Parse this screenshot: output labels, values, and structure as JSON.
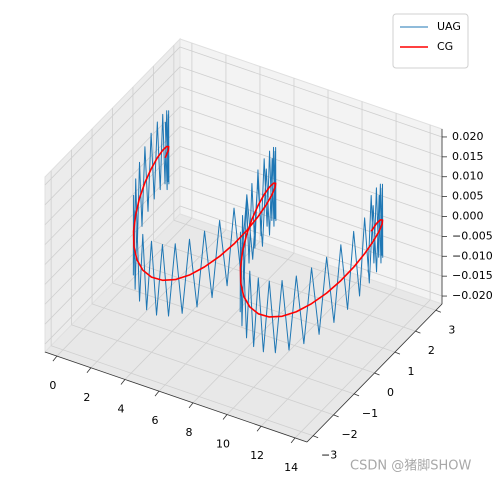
{
  "chart_data": {
    "type": "line3d",
    "xlim": [
      -0.7,
      14.7
    ],
    "ylim": [
      -3.3,
      3.3
    ],
    "zlim": [
      -0.022,
      0.022
    ],
    "xticks": [
      0,
      2,
      4,
      6,
      8,
      10,
      12,
      14
    ],
    "yticks": [
      {
        "value": -3,
        "label": "−3"
      },
      {
        "value": -2,
        "label": "−2"
      },
      {
        "value": -1,
        "label": "−1"
      },
      0,
      1,
      2,
      3
    ],
    "zticks": [
      {
        "value": -0.02,
        "label": "−0.020"
      },
      {
        "value": -0.015,
        "label": "−0.015"
      },
      {
        "value": -0.01,
        "label": "−0.010"
      },
      {
        "value": -0.005,
        "label": "−0.005"
      },
      {
        "value": 0,
        "label": "0.000"
      },
      {
        "value": 0.005,
        "label": "0.005"
      },
      {
        "value": 0.01,
        "label": "0.010"
      },
      {
        "value": 0.015,
        "label": "0.015"
      },
      {
        "value": 0.02,
        "label": "0.020"
      }
    ],
    "grid": true,
    "legend": "upper right",
    "series": [
      {
        "name": "UAG",
        "color": "#1f77b4",
        "x": [
          0,
          0.13,
          0.26,
          0.39,
          0.52,
          0.65,
          0.79,
          0.92,
          1.05,
          1.18,
          1.31,
          1.44,
          1.57,
          1.7,
          1.83,
          1.96,
          2.09,
          2.23,
          2.36,
          2.49,
          2.62,
          2.75,
          2.88,
          3.01,
          3.14,
          3.27,
          3.4,
          3.53,
          3.67,
          3.8,
          3.93,
          4.06,
          4.19,
          4.32,
          4.45,
          4.58,
          4.71,
          4.84,
          4.97,
          5.11,
          5.24,
          5.37,
          5.5,
          5.63,
          5.76,
          5.89,
          6.02,
          6.15,
          6.28,
          6.41,
          6.54,
          6.68,
          6.81,
          6.94,
          7.07,
          7.2,
          7.33,
          7.46,
          7.59,
          7.72,
          7.85,
          7.98,
          8.12,
          8.25,
          8.38,
          8.51,
          8.64,
          8.77,
          8.9,
          9.03,
          9.16,
          9.29,
          9.42,
          9.56,
          9.69,
          9.82,
          9.95,
          10.08,
          10.21,
          10.34,
          10.47,
          10.6,
          10.73,
          10.86,
          11,
          11.13,
          11.26,
          11.39,
          11.52,
          11.65,
          11.78,
          11.91,
          12.04,
          12.17,
          12.3,
          12.44,
          12.57,
          12.7,
          12.83,
          12.96,
          13.09,
          13.22,
          13.35,
          13.48,
          13.61,
          13.74,
          13.88,
          14.01
        ],
        "y": [
          2,
          1.98,
          1.93,
          1.85,
          1.73,
          1.59,
          1.41,
          1.22,
          1,
          0.77,
          0.52,
          0.26,
          0,
          -0.26,
          -0.52,
          -0.77,
          -1,
          -1.22,
          -1.41,
          -1.59,
          -1.73,
          -1.85,
          -1.93,
          -1.98,
          -2,
          -1.98,
          -1.93,
          -1.85,
          -1.73,
          -1.59,
          -1.41,
          -1.22,
          -1,
          -0.77,
          -0.52,
          -0.26,
          0,
          0.26,
          0.52,
          0.77,
          1,
          1.22,
          1.41,
          1.59,
          1.73,
          1.85,
          1.93,
          1.98,
          2,
          1.98,
          1.93,
          1.85,
          1.73,
          1.59,
          1.41,
          1.22,
          1,
          0.77,
          0.52,
          0.26,
          0,
          -0.26,
          -0.52,
          -0.77,
          -1,
          -1.22,
          -1.41,
          -1.59,
          -1.73,
          -1.85,
          -1.93,
          -1.98,
          -2,
          -1.98,
          -1.93,
          -1.85,
          -1.73,
          -1.59,
          -1.41,
          -1.22,
          -1,
          -0.77,
          -0.52,
          -0.26,
          0,
          0.26,
          0.52,
          0.77,
          1,
          1.22,
          1.41,
          1.59,
          1.73,
          1.85,
          1.93,
          1.98,
          2,
          1.98,
          1.93,
          1.85,
          1.73,
          1.59,
          1.41,
          1.22,
          1,
          0.77,
          0.52,
          0.26
        ],
        "z": [
          0.009,
          -0.0077,
          0.0116,
          -0.0052,
          0.014,
          -0.0029,
          0.0161,
          -0.0011,
          0.0177,
          0.0002,
          0.0187,
          0.0009,
          0.019,
          0.0009,
          0.0187,
          0.0002,
          0.0177,
          -0.0011,
          0.0161,
          -0.0029,
          0.014,
          -0.0052,
          0.0116,
          -0.0077,
          0.009,
          -0.0103,
          0.0064,
          -0.0128,
          0.004,
          -0.0151,
          0.0019,
          -0.0169,
          0.0003,
          -0.0182,
          -0.0007,
          -0.0189,
          -0.001,
          -0.0189,
          -0.0007,
          -0.0182,
          0.0003,
          -0.0169,
          0.0019,
          -0.0151,
          0.004,
          -0.0128,
          0.0064,
          -0.0103,
          0.009,
          -0.0077,
          0.0116,
          -0.0052,
          0.014,
          -0.0029,
          0.0161,
          -0.0011,
          0.0177,
          0.0002,
          0.0187,
          0.0009,
          0.019,
          0.0009,
          0.0187,
          0.0002,
          0.0177,
          -0.0011,
          0.0161,
          -0.0029,
          0.014,
          -0.0052,
          0.0116,
          -0.0077,
          0.009,
          -0.0103,
          0.0064,
          -0.0128,
          0.004,
          -0.0151,
          0.0019,
          -0.0169,
          0.0003,
          -0.0182,
          -0.0007,
          -0.0189,
          -0.001,
          -0.0189,
          -0.0007,
          -0.0182,
          0.0003,
          -0.0169,
          0.0019,
          -0.0151,
          0.004,
          -0.0128,
          0.0064,
          -0.0103,
          0.009,
          -0.0077,
          0.0116,
          -0.0052,
          0.014,
          -0.0029,
          0.0161,
          -0.0011,
          0.0177,
          0.0002,
          0.0187,
          0.0009
        ]
      },
      {
        "name": "CG",
        "color": "red",
        "x": [
          0,
          0.26,
          0.52,
          0.79,
          1.05,
          1.31,
          1.57,
          1.83,
          2.09,
          2.36,
          2.62,
          2.88,
          3.14,
          3.4,
          3.67,
          3.93,
          4.19,
          4.45,
          4.71,
          4.97,
          5.24,
          5.5,
          5.76,
          6.02,
          6.28,
          6.54,
          6.81,
          7.07,
          7.33,
          7.59,
          7.85,
          8.12,
          8.38,
          8.64,
          8.9,
          9.16,
          9.42,
          9.69,
          9.95,
          10.21,
          10.47,
          10.73,
          11,
          11.26,
          11.52,
          11.78,
          12.04,
          12.3,
          12.57,
          12.83,
          13.09,
          13.35,
          13.61,
          13.88
        ],
        "y": [
          2,
          1.93,
          1.73,
          1.41,
          1,
          0.52,
          0,
          -0.52,
          -1,
          -1.41,
          -1.73,
          -1.93,
          -2,
          -1.93,
          -1.73,
          -1.41,
          -1,
          -0.52,
          0,
          0.52,
          1,
          1.41,
          1.73,
          1.93,
          2,
          1.93,
          1.73,
          1.41,
          1,
          0.52,
          0,
          -0.52,
          -1,
          -1.41,
          -1.73,
          -1.93,
          -2,
          -1.93,
          -1.73,
          -1.41,
          -1,
          -0.52,
          0,
          0.52,
          1,
          1.41,
          1.73,
          1.93,
          2,
          1.93,
          1.73,
          1.41,
          1,
          0.52
        ],
        "z": [
          0,
          0.0026,
          0.005,
          0.0071,
          0.0087,
          0.0097,
          0.01,
          0.0097,
          0.0087,
          0.0071,
          0.005,
          0.0026,
          0,
          -0.0026,
          -0.005,
          -0.0071,
          -0.0087,
          -0.0097,
          -0.01,
          -0.0097,
          -0.0087,
          -0.0071,
          -0.005,
          -0.0026,
          0,
          0.0026,
          0.005,
          0.0071,
          0.0087,
          0.0097,
          0.01,
          0.0097,
          0.0087,
          0.0071,
          0.005,
          0.0026,
          0,
          -0.0026,
          -0.005,
          -0.0071,
          -0.0087,
          -0.0097,
          -0.01,
          -0.0097,
          -0.0087,
          -0.0071,
          -0.005,
          -0.0026,
          0,
          0.0026,
          0.005,
          0.0071,
          0.0087,
          0.0097
        ]
      }
    ]
  },
  "watermark": "CSDN @猪脚SHOW"
}
